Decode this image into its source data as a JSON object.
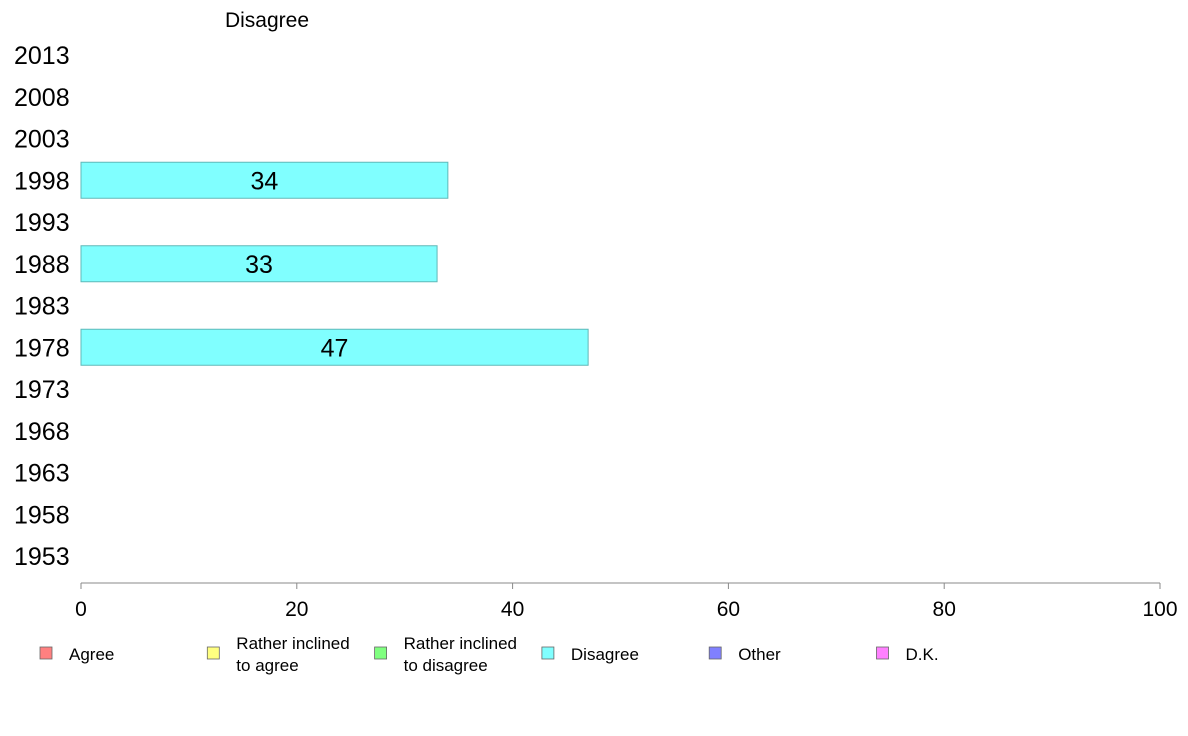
{
  "chart_data": {
    "type": "bar",
    "orientation": "horizontal",
    "title": "Disagree",
    "categories": [
      "2013",
      "2008",
      "2003",
      "1998",
      "1993",
      "1988",
      "1983",
      "1978",
      "1973",
      "1968",
      "1963",
      "1958",
      "1953"
    ],
    "series": [
      {
        "name": "Disagree",
        "color": "#80ffff",
        "values": [
          null,
          null,
          null,
          34,
          null,
          33,
          null,
          47,
          null,
          null,
          null,
          null,
          null
        ]
      }
    ],
    "xlim": [
      0,
      100
    ],
    "xticks": [
      "0",
      "20",
      "40",
      "60",
      "80",
      "100"
    ],
    "grid": false,
    "legend_position": "bottom",
    "legend": [
      {
        "lines": [
          "Agree"
        ],
        "color": "#ff8080"
      },
      {
        "lines": [
          "Rather inclined",
          "to agree"
        ],
        "color": "#ffff80"
      },
      {
        "lines": [
          "Rather inclined",
          "to disagree"
        ],
        "color": "#80ff80"
      },
      {
        "lines": [
          "Disagree"
        ],
        "color": "#80ffff"
      },
      {
        "lines": [
          "Other"
        ],
        "color": "#8080ff"
      },
      {
        "lines": [
          "D.K."
        ],
        "color": "#ff80ff"
      }
    ]
  }
}
